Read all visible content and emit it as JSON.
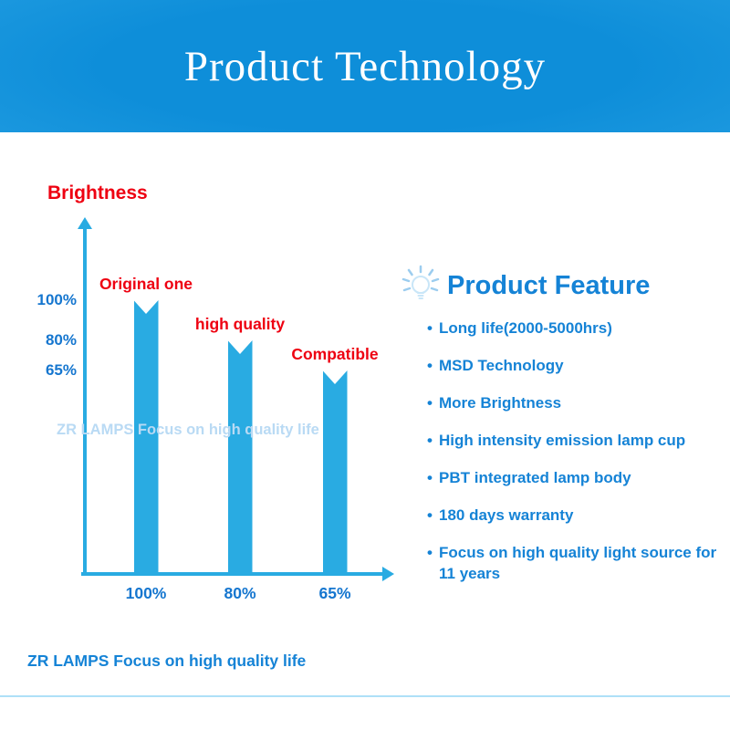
{
  "banner": {
    "title": "Product Technology"
  },
  "chart_data": {
    "type": "bar",
    "title": "Brightness",
    "categories": [
      "100%",
      "80%",
      "65%"
    ],
    "values": [
      100,
      80,
      65
    ],
    "bar_labels": [
      "Original one",
      "high quality",
      "Compatible"
    ],
    "ytick_labels": [
      "100%",
      "80%",
      "65%"
    ],
    "ylim": [
      0,
      100
    ],
    "bar_color": "#29abe2",
    "label_color": "#ee0011",
    "legend": "none",
    "grid": "off"
  },
  "watermark": "ZR LAMPS Focus on high quality life",
  "features": {
    "bullet": "•",
    "title": "Product Feature",
    "items": [
      "Long life(2000-5000hrs)",
      "MSD Technology",
      "More Brightness",
      "High intensity emission lamp cup",
      "PBT integrated lamp body",
      "180 days warranty",
      "Focus on high quality light source for 11 years"
    ]
  },
  "footer": {
    "slogan": "ZR LAMPS Focus on high quality life"
  },
  "colors": {
    "accent_blue": "#1583d6",
    "bar_blue": "#29abe2",
    "red": "#ee0011",
    "banner_blue": "#0e8ed9"
  }
}
